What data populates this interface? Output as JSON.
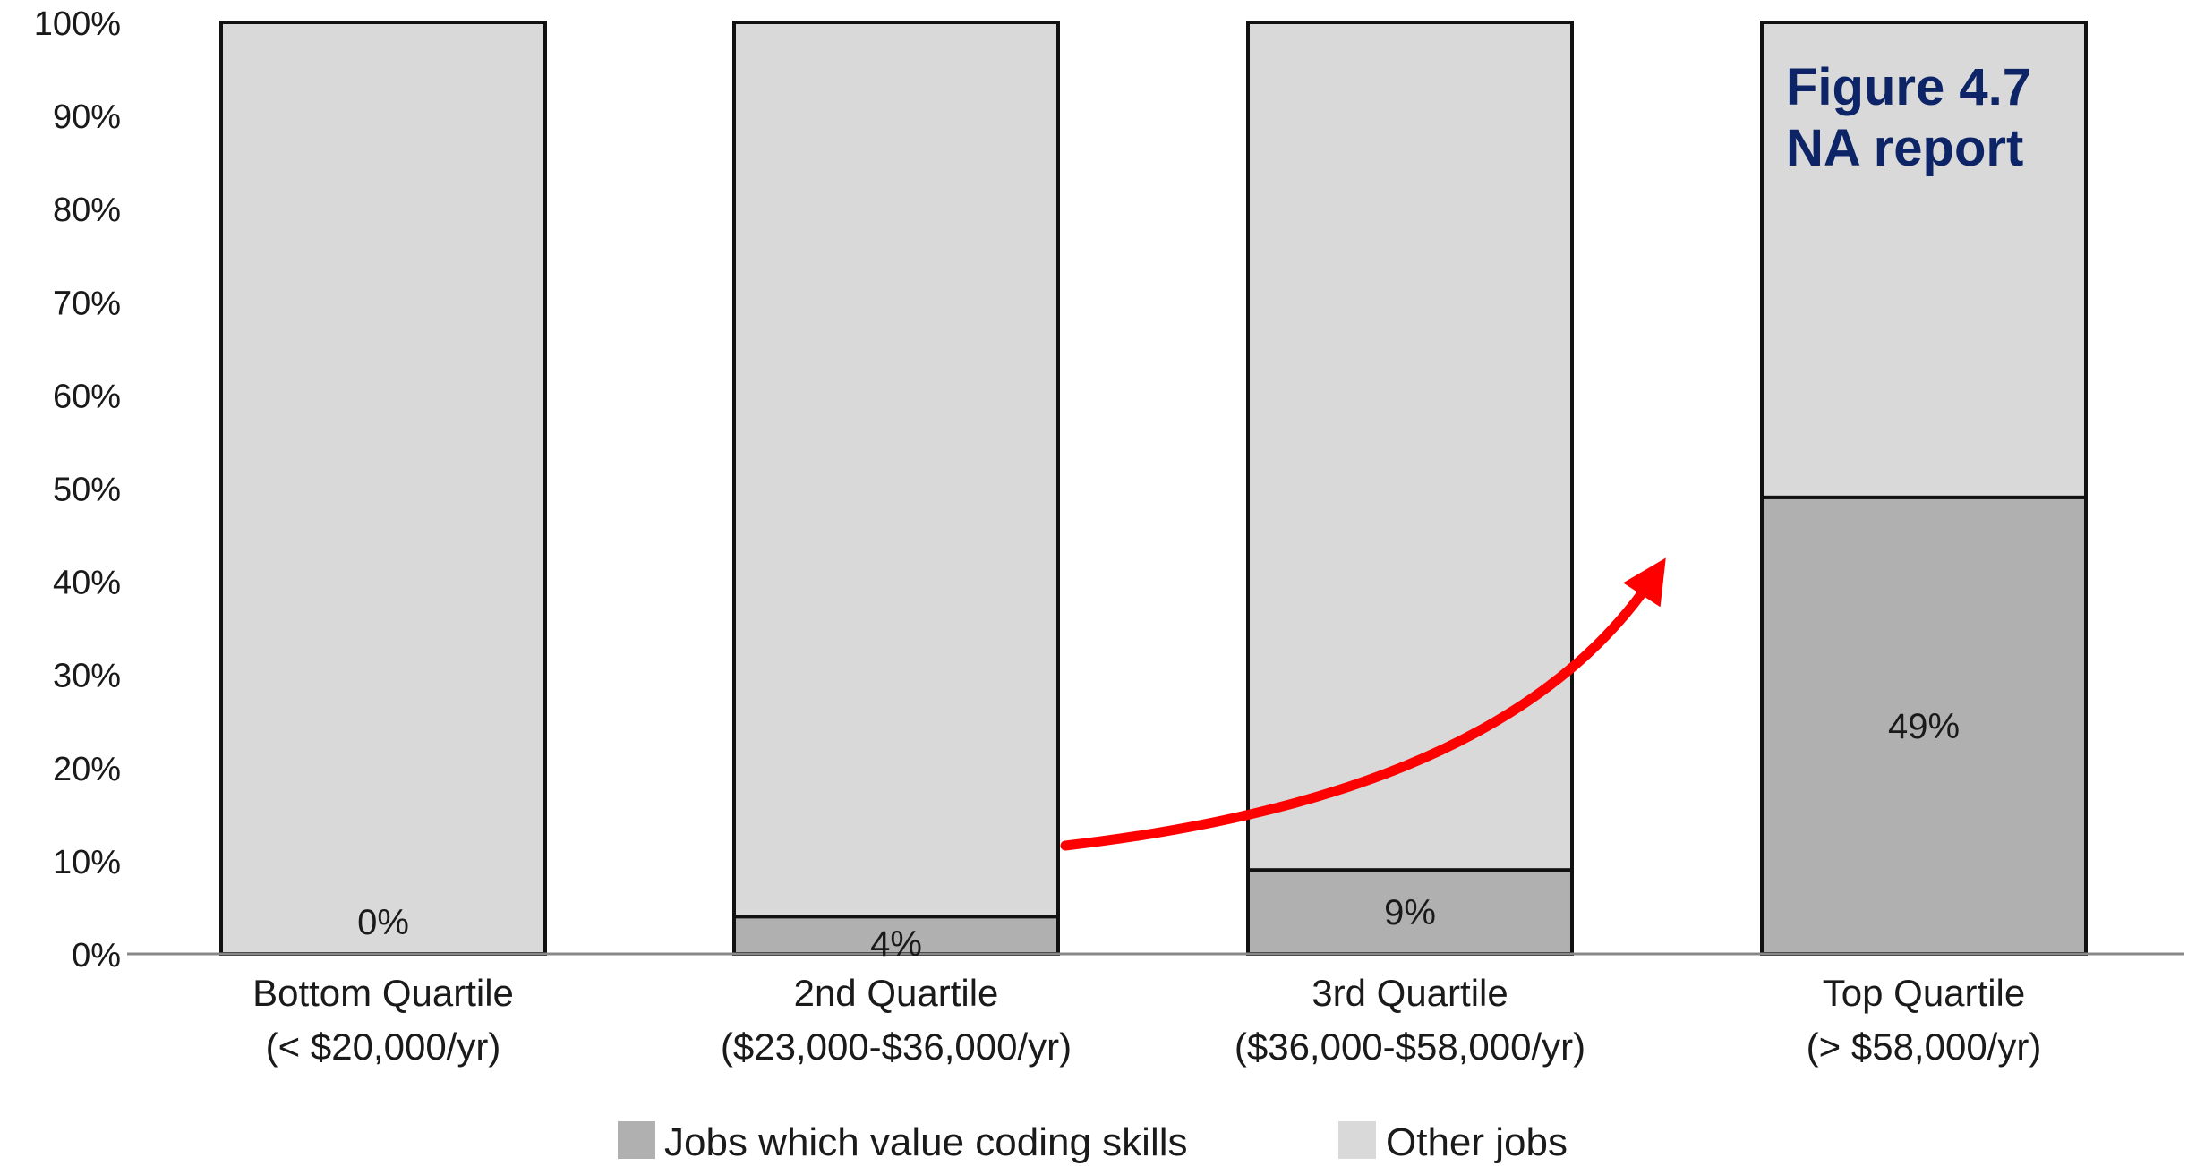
{
  "figure_note": {
    "line1": "Figure 4.7",
    "line2": "NA report"
  },
  "colors": {
    "coding": "#b0b0b0",
    "other": "#d9d9d9",
    "outline": "#111111",
    "arrow": "#ff0000",
    "figure_text": "#0d2466",
    "axis": "#888888"
  },
  "chart_data": {
    "type": "bar",
    "stacked": true,
    "title": "",
    "xlabel": "",
    "ylabel": "",
    "ylim": [
      0,
      100
    ],
    "yticks": [
      "0%",
      "10%",
      "20%",
      "30%",
      "40%",
      "50%",
      "60%",
      "70%",
      "80%",
      "90%",
      "100%"
    ],
    "categories": [
      {
        "line1": "Bottom Quartile",
        "line2": "(< $20,000/yr)"
      },
      {
        "line1": "2nd Quartile",
        "line2": "($23,000-$36,000/yr)"
      },
      {
        "line1": "3rd Quartile",
        "line2": "($36,000-$58,000/yr)"
      },
      {
        "line1": "Top Quartile",
        "line2": "(> $58,000/yr)"
      }
    ],
    "series": [
      {
        "name": "Jobs which value coding skills",
        "values": [
          0,
          4,
          9,
          49
        ],
        "labels": [
          "0%",
          "4%",
          "9%",
          "49%"
        ]
      },
      {
        "name": "Other jobs",
        "values": [
          100,
          96,
          91,
          51
        ]
      }
    ],
    "legend_position": "bottom-center",
    "grid": false,
    "annotation": "red curved arrow rising from 2nd Quartile toward Top Quartile"
  }
}
